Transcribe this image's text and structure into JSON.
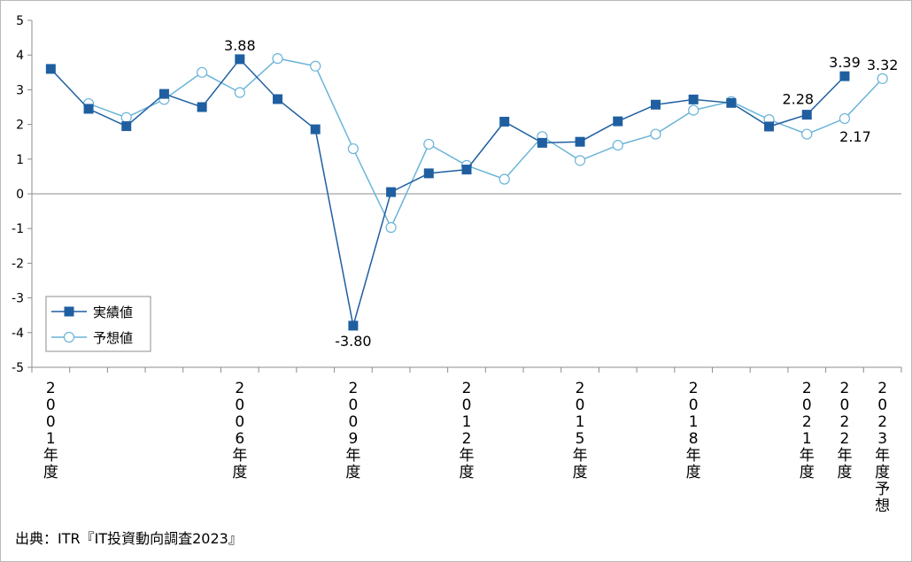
{
  "chart_data": {
    "type": "line",
    "yticks": [
      5,
      4,
      3,
      2,
      1,
      0,
      -1,
      -2,
      -3,
      -4,
      -5
    ],
    "ylim": [
      -5,
      5
    ],
    "x_labels": [
      {
        "index": 0,
        "chars": [
          "2",
          "0",
          "0",
          "1",
          "年",
          "度"
        ]
      },
      {
        "index": 5,
        "chars": [
          "2",
          "0",
          "0",
          "6",
          "年",
          "度"
        ]
      },
      {
        "index": 8,
        "chars": [
          "2",
          "0",
          "0",
          "9",
          "年",
          "度"
        ]
      },
      {
        "index": 11,
        "chars": [
          "2",
          "0",
          "1",
          "2",
          "年",
          "度"
        ]
      },
      {
        "index": 14,
        "chars": [
          "2",
          "0",
          "1",
          "5",
          "年",
          "度"
        ]
      },
      {
        "index": 17,
        "chars": [
          "2",
          "0",
          "1",
          "8",
          "年",
          "度"
        ]
      },
      {
        "index": 20,
        "chars": [
          "2",
          "0",
          "2",
          "1",
          "年",
          "度"
        ]
      },
      {
        "index": 21,
        "chars": [
          "2",
          "0",
          "2",
          "2",
          "年",
          "度"
        ]
      },
      {
        "index": 22,
        "chars": [
          "2",
          "0",
          "2",
          "3",
          "年",
          "度",
          "予",
          "想"
        ]
      }
    ],
    "series": [
      {
        "name": "実績値",
        "color": "#1f5fa0",
        "marker": "square",
        "values": [
          3.6,
          2.45,
          1.95,
          2.88,
          2.5,
          3.88,
          2.73,
          1.86,
          -3.8,
          0.05,
          0.59,
          0.7,
          2.08,
          1.47,
          1.5,
          2.09,
          2.57,
          2.72,
          2.62,
          1.94,
          2.28,
          3.39,
          null
        ]
      },
      {
        "name": "予想値",
        "color": "#6ab4d8",
        "marker": "circle",
        "values": [
          null,
          2.6,
          2.2,
          2.72,
          3.5,
          2.92,
          3.9,
          3.68,
          1.3,
          -0.97,
          1.43,
          0.82,
          0.42,
          1.65,
          0.96,
          1.4,
          1.72,
          2.41,
          2.66,
          2.14,
          1.72,
          2.17,
          3.32
        ]
      }
    ],
    "data_labels": [
      {
        "series": 0,
        "index": 5,
        "text": "3.88",
        "pos": "above"
      },
      {
        "series": 0,
        "index": 8,
        "text": "-3.80",
        "pos": "below"
      },
      {
        "series": 0,
        "index": 20,
        "text": "2.28",
        "pos": "above-left"
      },
      {
        "series": 0,
        "index": 21,
        "text": "3.39",
        "pos": "above"
      },
      {
        "series": 1,
        "index": 21,
        "text": "2.17",
        "pos": "below-right"
      },
      {
        "series": 1,
        "index": 22,
        "text": "3.32",
        "pos": "above"
      }
    ],
    "legend": {
      "placement": "lower-left"
    }
  },
  "source": "出典：ITR『IT投資動向調査2023』"
}
